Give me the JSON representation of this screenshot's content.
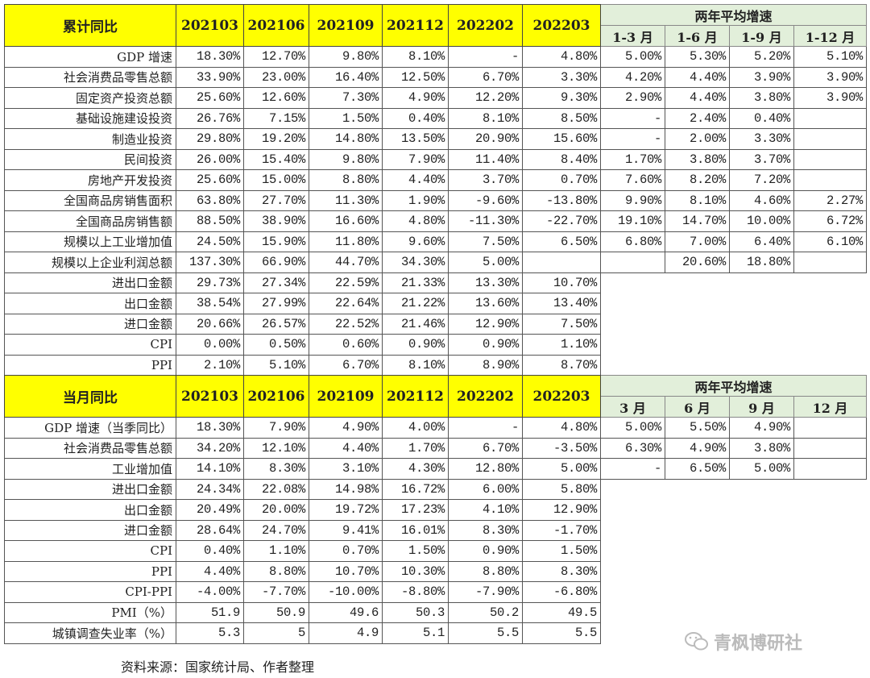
{
  "sections": [
    {
      "title": "累计同比",
      "periods": [
        "202103",
        "202106",
        "202109",
        "202112",
        "202202",
        "202203"
      ],
      "two_year_title": "两年平均增速",
      "two_year_periods": [
        "1-3 月",
        "1-6 月",
        "1-9 月",
        "1-12 月"
      ],
      "rows": [
        {
          "label": "GDP 增速",
          "values": [
            "18.30%",
            "12.70%",
            "9.80%",
            "8.10%",
            "-",
            "4.80%"
          ],
          "two_year": [
            "5.00%",
            "5.30%",
            "5.20%",
            "5.10%"
          ]
        },
        {
          "label": "社会消费品零售总额",
          "values": [
            "33.90%",
            "23.00%",
            "16.40%",
            "12.50%",
            "6.70%",
            "3.30%"
          ],
          "two_year": [
            "4.20%",
            "4.40%",
            "3.90%",
            "3.90%"
          ]
        },
        {
          "label": "固定资产投资总额",
          "values": [
            "25.60%",
            "12.60%",
            "7.30%",
            "4.90%",
            "12.20%",
            "9.30%"
          ],
          "two_year": [
            "2.90%",
            "4.40%",
            "3.80%",
            "3.90%"
          ]
        },
        {
          "label": "基础设施建设投资",
          "values": [
            "26.76%",
            "7.15%",
            "1.50%",
            "0.40%",
            "8.10%",
            "8.50%"
          ],
          "two_year": [
            "-",
            "2.40%",
            "0.40%",
            ""
          ]
        },
        {
          "label": "制造业投资",
          "values": [
            "29.80%",
            "19.20%",
            "14.80%",
            "13.50%",
            "20.90%",
            "15.60%"
          ],
          "two_year": [
            "-",
            "2.00%",
            "3.30%",
            ""
          ]
        },
        {
          "label": "民间投资",
          "values": [
            "26.00%",
            "15.40%",
            "9.80%",
            "7.90%",
            "11.40%",
            "8.40%"
          ],
          "two_year": [
            "1.70%",
            "3.80%",
            "3.70%",
            ""
          ]
        },
        {
          "label": "房地产开发投资",
          "values": [
            "25.60%",
            "15.00%",
            "8.80%",
            "4.40%",
            "3.70%",
            "0.70%"
          ],
          "two_year": [
            "7.60%",
            "8.20%",
            "7.20%",
            ""
          ]
        },
        {
          "label": "全国商品房销售面积",
          "values": [
            "63.80%",
            "27.70%",
            "11.30%",
            "1.90%",
            "-9.60%",
            "-13.80%"
          ],
          "two_year": [
            "9.90%",
            "8.10%",
            "4.60%",
            "2.27%"
          ]
        },
        {
          "label": "全国商品房销售额",
          "values": [
            "88.50%",
            "38.90%",
            "16.60%",
            "4.80%",
            "-11.30%",
            "-22.70%"
          ],
          "two_year": [
            "19.10%",
            "14.70%",
            "10.00%",
            "6.72%"
          ]
        },
        {
          "label": "规模以上工业增加值",
          "values": [
            "24.50%",
            "15.90%",
            "11.80%",
            "9.60%",
            "7.50%",
            "6.50%"
          ],
          "two_year": [
            "6.80%",
            "7.00%",
            "6.40%",
            "6.10%"
          ]
        },
        {
          "label": "规模以上企业利润总额",
          "values": [
            "137.30%",
            "66.90%",
            "44.70%",
            "34.30%",
            "5.00%",
            ""
          ],
          "two_year": [
            "",
            "20.60%",
            "18.80%",
            ""
          ]
        },
        {
          "label": "进出口金额",
          "values": [
            "29.73%",
            "27.34%",
            "22.59%",
            "21.33%",
            "13.30%",
            "10.70%"
          ]
        },
        {
          "label": "出口金额",
          "values": [
            "38.54%",
            "27.99%",
            "22.64%",
            "21.22%",
            "13.60%",
            "13.40%"
          ]
        },
        {
          "label": "进口金额",
          "values": [
            "20.66%",
            "26.57%",
            "22.52%",
            "21.46%",
            "12.90%",
            "7.50%"
          ]
        },
        {
          "label": "CPI",
          "values": [
            "0.00%",
            "0.50%",
            "0.60%",
            "0.90%",
            "0.90%",
            "1.10%"
          ]
        },
        {
          "label": "PPI",
          "values": [
            "2.10%",
            "5.10%",
            "6.70%",
            "8.10%",
            "8.90%",
            "8.70%"
          ]
        }
      ]
    },
    {
      "title": "当月同比",
      "periods": [
        "202103",
        "202106",
        "202109",
        "202112",
        "202202",
        "202203"
      ],
      "two_year_title": "两年平均增速",
      "two_year_periods": [
        "3 月",
        "6 月",
        "9 月",
        "12 月"
      ],
      "rows": [
        {
          "label": "GDP 增速（当季同比）",
          "values": [
            "18.30%",
            "7.90%",
            "4.90%",
            "4.00%",
            "-",
            "4.80%"
          ],
          "two_year": [
            "5.00%",
            "5.50%",
            "4.90%",
            ""
          ]
        },
        {
          "label": "社会消费品零售总额",
          "values": [
            "34.20%",
            "12.10%",
            "4.40%",
            "1.70%",
            "6.70%",
            "-3.50%"
          ],
          "two_year": [
            "6.30%",
            "4.90%",
            "3.80%",
            ""
          ]
        },
        {
          "label": "工业增加值",
          "values": [
            "14.10%",
            "8.30%",
            "3.10%",
            "4.30%",
            "12.80%",
            "5.00%"
          ],
          "two_year": [
            "-",
            "6.50%",
            "5.00%",
            ""
          ]
        },
        {
          "label": "进出口金额",
          "values": [
            "24.34%",
            "22.08%",
            "14.98%",
            "16.72%",
            "6.00%",
            "5.80%"
          ]
        },
        {
          "label": "出口金额",
          "values": [
            "20.49%",
            "20.00%",
            "19.72%",
            "17.23%",
            "4.10%",
            "12.90%"
          ]
        },
        {
          "label": "进口金额",
          "values": [
            "28.64%",
            "24.70%",
            "9.41%",
            "16.01%",
            "8.30%",
            "-1.70%"
          ]
        },
        {
          "label": "CPI",
          "values": [
            "0.40%",
            "1.10%",
            "0.70%",
            "1.50%",
            "0.90%",
            "1.50%"
          ]
        },
        {
          "label": "PPI",
          "values": [
            "4.40%",
            "8.80%",
            "10.70%",
            "10.30%",
            "8.80%",
            "8.30%"
          ]
        },
        {
          "label": "CPI-PPI",
          "values": [
            "-4.00%",
            "-7.70%",
            "-10.00%",
            "-8.80%",
            "-7.90%",
            "-6.80%"
          ]
        },
        {
          "label": "PMI（%）",
          "values": [
            "51.9",
            "50.9",
            "49.6",
            "50.3",
            "50.2",
            "49.5"
          ]
        },
        {
          "label": "城镇调查失业率（%）",
          "values": [
            "5.3",
            "5",
            "4.9",
            "5.1",
            "5.5",
            "5.5"
          ]
        }
      ]
    }
  ],
  "source": "资料来源：国家统计局、作者整理",
  "watermark": "青枫博研社",
  "colors": {
    "header_yellow": "#ffff00",
    "two_year_header_green": "#e2efda"
  }
}
